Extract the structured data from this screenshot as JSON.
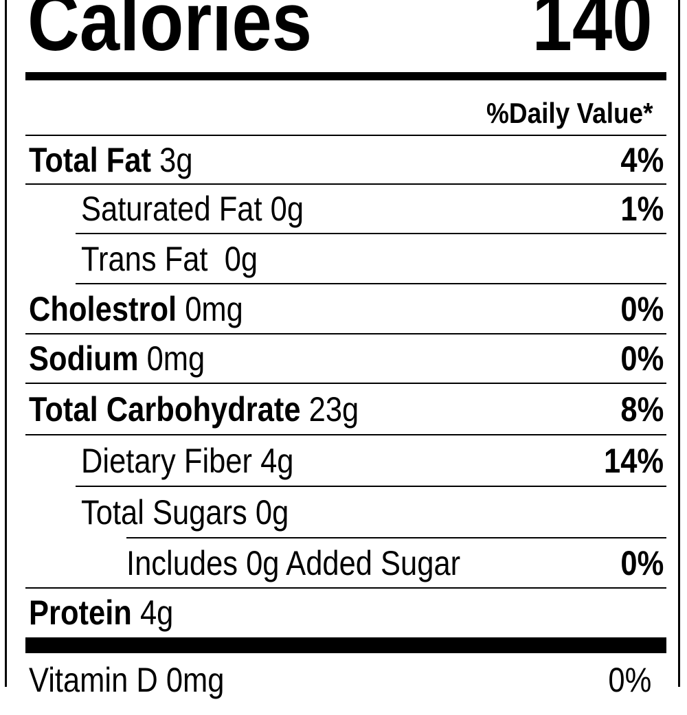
{
  "calories": {
    "label": "Calories",
    "value": "140"
  },
  "daily_value_header": "%Daily Value*",
  "rows": [
    {
      "name": "Total Fat",
      "amount": "3g",
      "percent": "4%",
      "bold": true,
      "indent": 0
    },
    {
      "name": "Saturated Fat",
      "amount": "0g",
      "percent": "1%",
      "bold": false,
      "indent": 1
    },
    {
      "name": "Trans Fat",
      "amount": " 0g",
      "percent": "",
      "bold": false,
      "indent": 1
    },
    {
      "name": "Cholestrol",
      "amount": "0mg",
      "percent": "0%",
      "bold": true,
      "indent": 0
    },
    {
      "name": "Sodium",
      "amount": "0mg",
      "percent": "0%",
      "bold": true,
      "indent": 0
    },
    {
      "name": "Total Carbohydrate",
      "amount": "23g",
      "percent": "8%",
      "bold": true,
      "indent": 0
    },
    {
      "name": "Dietary Fiber",
      "amount": "4g",
      "percent": "14%",
      "bold": false,
      "indent": 1
    },
    {
      "name": "Total Sugars",
      "amount": "0g",
      "percent": "",
      "bold": false,
      "indent": 1
    },
    {
      "name": "Includes 0g Added Sugar",
      "amount": "",
      "percent": "0%",
      "bold": false,
      "indent": 2
    },
    {
      "name": "Protein",
      "amount": "4g",
      "percent": "",
      "bold": true,
      "indent": 0
    }
  ],
  "vitamins": [
    {
      "name": "Vitamin D",
      "amount": "0mg",
      "percent": "0%"
    }
  ]
}
